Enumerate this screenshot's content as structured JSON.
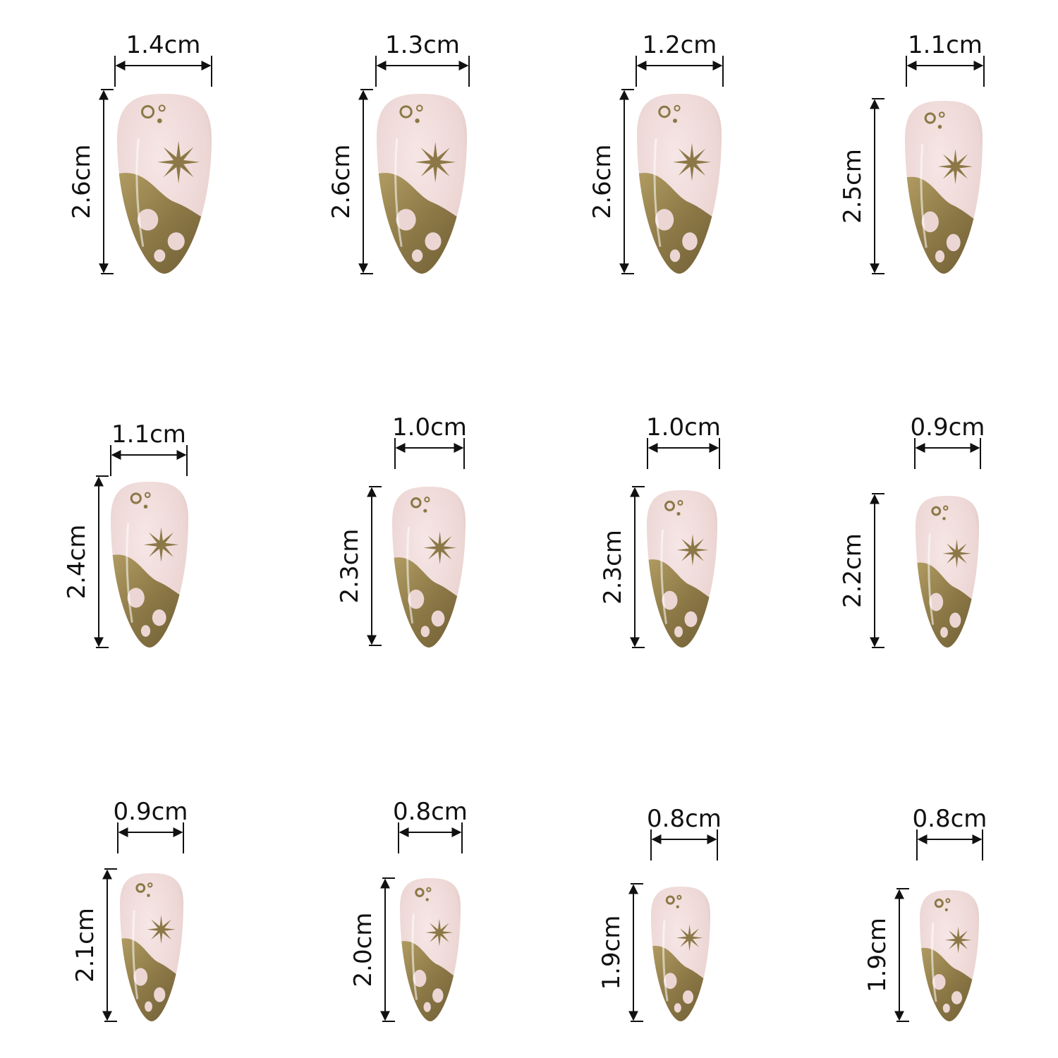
{
  "colors": {
    "background": "#ffffff",
    "line": "#111111",
    "nail_base": "#f0dcdc",
    "nail_base_shade": "#c9b0ad",
    "gold": "#9b8650",
    "gold_dark": "#6b5a32"
  },
  "nails": [
    {
      "width_label": "1.4cm",
      "height_label": "2.6cm"
    },
    {
      "width_label": "1.3cm",
      "height_label": "2.6cm"
    },
    {
      "width_label": "1.2cm",
      "height_label": "2.6cm"
    },
    {
      "width_label": "1.1cm",
      "height_label": "2.5cm"
    },
    {
      "width_label": "1.1cm",
      "height_label": "2.4cm"
    },
    {
      "width_label": "1.0cm",
      "height_label": "2.3cm"
    },
    {
      "width_label": "1.0cm",
      "height_label": "2.3cm"
    },
    {
      "width_label": "0.9cm",
      "height_label": "2.2cm"
    },
    {
      "width_label": "0.9cm",
      "height_label": "2.1cm"
    },
    {
      "width_label": "0.8cm",
      "height_label": "2.0cm"
    },
    {
      "width_label": "0.8cm",
      "height_label": "1.9cm"
    },
    {
      "width_label": "0.8cm",
      "height_label": "1.9cm"
    }
  ]
}
